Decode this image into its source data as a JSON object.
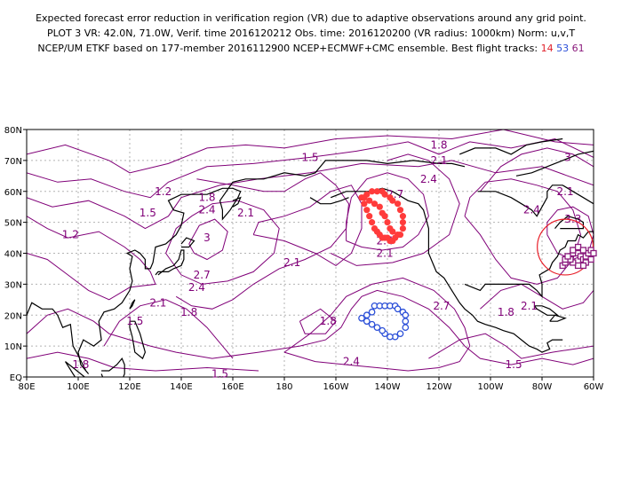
{
  "header": {
    "line1": "Expected forecast error reduction in verification region (VR) due to adaptive observations around any grid point.",
    "line2": "PLOT 3 VR: 42.0N, 71.0W, Verif. time 2016120212 Obs. time: 2016120200 (VR radius: 1000km) Norm: u,v,T",
    "line3_prefix": "NCEP/UM ETKF based on 177-member 2016112900 NCEP+ECMWF+CMC ensemble. Best flight tracks:",
    "track1": "14",
    "track2": "53",
    "track3": "61"
  },
  "chart_data": {
    "type": "map",
    "x_ticks": [
      "80E",
      "100E",
      "120E",
      "140E",
      "160E",
      "180",
      "160W",
      "140W",
      "120W",
      "100W",
      "80W",
      "60W"
    ],
    "y_ticks": [
      "EQ",
      "10N",
      "20N",
      "30N",
      "40N",
      "50N",
      "60N",
      "70N",
      "80N"
    ],
    "xlim": [
      80,
      300
    ],
    "ylim": [
      0,
      80
    ],
    "grid": true,
    "contour_labels": [
      {
        "text": "1.8",
        "lon": 240,
        "lat": 75
      },
      {
        "text": "2.1",
        "lon": 240,
        "lat": 70
      },
      {
        "text": "2.4",
        "lon": 236,
        "lat": 64
      },
      {
        "text": "1.5",
        "lon": 190,
        "lat": 71
      },
      {
        "text": "1.2",
        "lon": 133,
        "lat": 60
      },
      {
        "text": "1.8",
        "lon": 150,
        "lat": 58
      },
      {
        "text": "2.4",
        "lon": 150,
        "lat": 54
      },
      {
        "text": "2.1",
        "lon": 165,
        "lat": 53
      },
      {
        "text": "1.5",
        "lon": 127,
        "lat": 53
      },
      {
        "text": "1.2",
        "lon": 97,
        "lat": 46
      },
      {
        "text": "2.7",
        "lon": 223,
        "lat": 59
      },
      {
        "text": "3",
        "lon": 150,
        "lat": 45
      },
      {
        "text": "2.4",
        "lon": 219,
        "lat": 44
      },
      {
        "text": "2.1",
        "lon": 219,
        "lat": 40
      },
      {
        "text": "2.1",
        "lon": 183,
        "lat": 37
      },
      {
        "text": "2.7",
        "lon": 148,
        "lat": 33
      },
      {
        "text": "2.4",
        "lon": 146,
        "lat": 29
      },
      {
        "text": "2.1",
        "lon": 131,
        "lat": 24
      },
      {
        "text": "1.8",
        "lon": 143,
        "lat": 21
      },
      {
        "text": "1.5",
        "lon": 122,
        "lat": 18
      },
      {
        "text": "1.8",
        "lon": 197,
        "lat": 18
      },
      {
        "text": "2.7",
        "lon": 241,
        "lat": 23
      },
      {
        "text": "1.8",
        "lon": 266,
        "lat": 21
      },
      {
        "text": "2.1",
        "lon": 275,
        "lat": 23
      },
      {
        "text": "2.4",
        "lon": 276,
        "lat": 54
      },
      {
        "text": "2.1",
        "lon": 289,
        "lat": 60
      },
      {
        "text": "3",
        "lon": 290,
        "lat": 71
      },
      {
        "text": "3.3",
        "lon": 292,
        "lat": 51
      },
      {
        "text": "1.8",
        "lon": 101,
        "lat": 4
      },
      {
        "text": "1.5",
        "lon": 155,
        "lat": 1
      },
      {
        "text": "2.4",
        "lon": 206,
        "lat": 5
      },
      {
        "text": "1.5",
        "lon": 269,
        "lat": 4
      }
    ],
    "verification_region": {
      "lat": 42.0,
      "lon": -71.0,
      "radius_km": 1000
    },
    "tracks": [
      {
        "id": "14",
        "color": "#ff3b3b",
        "marker": "filled-circle",
        "points": [
          [
            210,
            58
          ],
          [
            211,
            56
          ],
          [
            212,
            54
          ],
          [
            213,
            52
          ],
          [
            214,
            50
          ],
          [
            215,
            48
          ],
          [
            216,
            47
          ],
          [
            217,
            46
          ],
          [
            218,
            45
          ],
          [
            219,
            45
          ],
          [
            220,
            45
          ],
          [
            221,
            44
          ],
          [
            222,
            44
          ],
          [
            223,
            45
          ],
          [
            224,
            46
          ],
          [
            225,
            46
          ],
          [
            226,
            48
          ],
          [
            226,
            50
          ],
          [
            226,
            52
          ],
          [
            225,
            54
          ],
          [
            224,
            56
          ],
          [
            222,
            57
          ],
          [
            221,
            58
          ],
          [
            219,
            59
          ],
          [
            218,
            60
          ],
          [
            216,
            60
          ],
          [
            214,
            60
          ],
          [
            212,
            59
          ],
          [
            211,
            58
          ],
          [
            213,
            57
          ],
          [
            215,
            56
          ],
          [
            217,
            55
          ],
          [
            218,
            53
          ],
          [
            219,
            52
          ],
          [
            220,
            50
          ],
          [
            221,
            48
          ],
          [
            222,
            47
          ]
        ]
      },
      {
        "id": "53",
        "color": "#2a4ed8",
        "marker": "open-circle",
        "points": [
          [
            210,
            19
          ],
          [
            212,
            20
          ],
          [
            214,
            21
          ],
          [
            215,
            23
          ],
          [
            217,
            23
          ],
          [
            219,
            23
          ],
          [
            221,
            23
          ],
          [
            223,
            23
          ],
          [
            224,
            22
          ],
          [
            226,
            21
          ],
          [
            227,
            20
          ],
          [
            227,
            18
          ],
          [
            227,
            16
          ],
          [
            225,
            14
          ],
          [
            223,
            13
          ],
          [
            221,
            13
          ],
          [
            219,
            14
          ],
          [
            218,
            15
          ],
          [
            216,
            16
          ],
          [
            214,
            17
          ],
          [
            212,
            18
          ]
        ]
      },
      {
        "id": "61",
        "color": "#8a1a7c",
        "marker": "open-square",
        "points": [
          [
            288,
            36
          ],
          [
            289,
            37
          ],
          [
            290,
            38
          ],
          [
            291,
            39
          ],
          [
            292,
            40
          ],
          [
            293,
            41
          ],
          [
            294,
            40
          ],
          [
            295,
            39
          ],
          [
            296,
            38
          ],
          [
            297,
            39
          ],
          [
            298,
            40
          ],
          [
            299,
            41
          ],
          [
            300,
            40
          ],
          [
            299,
            38
          ],
          [
            297,
            37
          ],
          [
            296,
            36
          ],
          [
            294,
            36
          ],
          [
            292,
            37
          ],
          [
            291,
            38
          ],
          [
            289,
            38
          ],
          [
            290,
            39
          ],
          [
            292,
            41
          ],
          [
            294,
            42
          ],
          [
            296,
            41
          ]
        ]
      }
    ]
  },
  "colors": {
    "contour": "#800078",
    "grid": "#b3b3b3",
    "coast": "#000000",
    "vr_circle": "#e8202a"
  },
  "icons": {
    "compass": "none"
  }
}
